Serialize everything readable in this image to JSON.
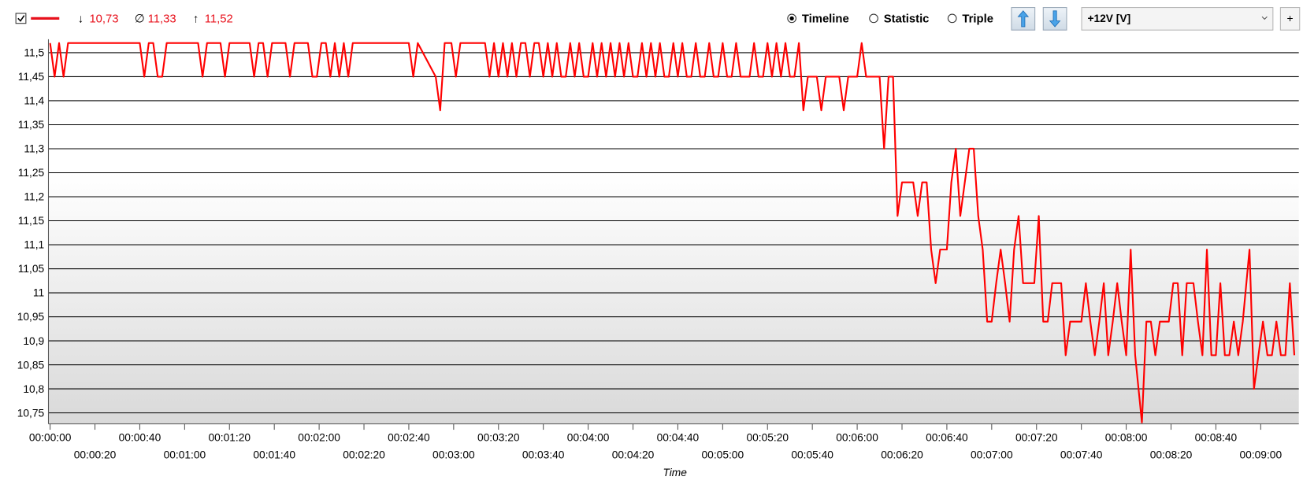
{
  "toolbar": {
    "stats": {
      "min": "10,73",
      "avg": "11,33",
      "max": "11,52"
    },
    "views": [
      "Timeline",
      "Statistic",
      "Triple"
    ],
    "sensor": "+12V [V]",
    "add_button": "+"
  },
  "chart_data": {
    "type": "line",
    "x_label": "Time",
    "x": [
      0,
      2,
      4,
      6,
      8,
      40,
      42,
      44,
      46,
      48,
      50,
      52,
      66,
      68,
      70,
      76,
      78,
      80,
      89,
      91,
      93,
      95,
      97,
      99,
      105,
      107,
      109,
      115,
      117,
      119,
      121,
      123,
      125,
      127,
      129,
      131,
      133,
      135,
      160,
      162,
      164,
      172,
      174,
      176,
      179,
      181,
      183,
      194,
      196,
      198,
      200,
      202,
      204,
      206,
      208,
      210,
      212,
      214,
      216,
      218,
      220,
      222,
      224,
      226,
      228,
      230,
      232,
      234,
      236,
      238,
      240,
      242,
      244,
      246,
      248,
      250,
      252,
      254,
      256,
      258,
      260,
      262,
      264,
      266,
      268,
      270,
      272,
      274,
      276,
      278,
      280,
      282,
      284,
      286,
      288,
      290,
      292,
      294,
      296,
      298,
      300,
      302,
      304,
      306,
      308,
      310,
      312,
      314,
      316,
      318,
      320,
      322,
      324,
      326,
      328,
      330,
      332,
      334,
      336,
      338,
      342,
      344,
      346,
      352,
      354,
      356,
      360,
      362,
      364,
      370,
      372,
      374,
      376,
      378,
      380,
      385,
      387,
      389,
      391,
      393,
      395,
      397,
      400,
      402,
      404,
      406,
      408,
      410,
      412,
      414,
      416,
      418,
      420,
      422,
      424,
      426,
      428,
      430,
      432,
      434,
      439,
      441,
      443,
      445,
      447,
      451,
      453,
      455,
      460,
      462,
      464,
      466,
      468,
      470,
      472,
      474,
      476,
      478,
      480,
      482,
      484,
      487,
      489,
      491,
      493,
      495,
      499,
      501,
      503,
      505,
      507,
      510,
      512,
      514,
      516,
      518,
      520,
      522,
      524,
      526,
      528,
      530,
      532,
      535,
      537,
      539,
      541,
      543,
      545,
      547,
      549,
      551,
      553,
      555
    ],
    "series": [
      {
        "color": "#ff0000",
        "values": [
          11.52,
          11.45,
          11.52,
          11.45,
          11.52,
          11.52,
          11.45,
          11.52,
          11.52,
          11.45,
          11.45,
          11.52,
          11.52,
          11.45,
          11.52,
          11.52,
          11.45,
          11.52,
          11.52,
          11.45,
          11.52,
          11.52,
          11.45,
          11.52,
          11.52,
          11.45,
          11.52,
          11.52,
          11.45,
          11.45,
          11.52,
          11.52,
          11.45,
          11.52,
          11.45,
          11.52,
          11.45,
          11.52,
          11.52,
          11.45,
          11.52,
          11.45,
          11.38,
          11.52,
          11.52,
          11.45,
          11.52,
          11.52,
          11.45,
          11.52,
          11.45,
          11.52,
          11.45,
          11.52,
          11.45,
          11.52,
          11.52,
          11.45,
          11.52,
          11.52,
          11.45,
          11.52,
          11.45,
          11.52,
          11.45,
          11.45,
          11.52,
          11.45,
          11.52,
          11.45,
          11.45,
          11.52,
          11.45,
          11.52,
          11.45,
          11.52,
          11.45,
          11.52,
          11.45,
          11.52,
          11.45,
          11.45,
          11.52,
          11.45,
          11.52,
          11.45,
          11.52,
          11.45,
          11.45,
          11.52,
          11.45,
          11.52,
          11.45,
          11.45,
          11.52,
          11.45,
          11.45,
          11.52,
          11.45,
          11.45,
          11.52,
          11.45,
          11.45,
          11.52,
          11.45,
          11.45,
          11.45,
          11.52,
          11.45,
          11.45,
          11.52,
          11.45,
          11.52,
          11.45,
          11.52,
          11.45,
          11.45,
          11.52,
          11.38,
          11.45,
          11.45,
          11.38,
          11.45,
          11.45,
          11.38,
          11.45,
          11.45,
          11.52,
          11.45,
          11.45,
          11.3,
          11.45,
          11.45,
          11.16,
          11.23,
          11.23,
          11.16,
          11.23,
          11.23,
          11.09,
          11.02,
          11.09,
          11.09,
          11.23,
          11.3,
          11.16,
          11.23,
          11.3,
          11.3,
          11.16,
          11.09,
          10.94,
          10.94,
          11.02,
          11.09,
          11.02,
          10.94,
          11.09,
          11.16,
          11.02,
          11.02,
          11.16,
          10.94,
          10.94,
          11.02,
          11.02,
          10.87,
          10.94,
          10.94,
          11.02,
          10.94,
          10.87,
          10.94,
          11.02,
          10.87,
          10.94,
          11.02,
          10.94,
          10.87,
          11.09,
          10.87,
          10.73,
          10.94,
          10.94,
          10.87,
          10.94,
          10.94,
          11.02,
          11.02,
          10.87,
          11.02,
          11.02,
          10.94,
          10.87,
          11.09,
          10.87,
          10.87,
          11.02,
          10.87,
          10.87,
          10.94,
          10.87,
          10.94,
          11.09,
          10.8,
          10.87,
          10.94,
          10.87,
          10.87,
          10.94,
          10.87,
          10.87,
          11.02,
          10.87
        ]
      }
    ],
    "xlim": [
      0,
      557
    ],
    "ylim": [
      10.727,
      11.528
    ],
    "xticks": [
      {
        "value": 0,
        "label": "00:00:00"
      },
      {
        "value": 20,
        "label": "00:00:20"
      },
      {
        "value": 40,
        "label": "00:00:40"
      },
      {
        "value": 60,
        "label": "00:01:00"
      },
      {
        "value": 80,
        "label": "00:01:20"
      },
      {
        "value": 100,
        "label": "00:01:40"
      },
      {
        "value": 120,
        "label": "00:02:00"
      },
      {
        "value": 140,
        "label": "00:02:20"
      },
      {
        "value": 160,
        "label": "00:02:40"
      },
      {
        "value": 180,
        "label": "00:03:00"
      },
      {
        "value": 200,
        "label": "00:03:20"
      },
      {
        "value": 220,
        "label": "00:03:40"
      },
      {
        "value": 240,
        "label": "00:04:00"
      },
      {
        "value": 260,
        "label": "00:04:20"
      },
      {
        "value": 280,
        "label": "00:04:40"
      },
      {
        "value": 300,
        "label": "00:05:00"
      },
      {
        "value": 320,
        "label": "00:05:20"
      },
      {
        "value": 340,
        "label": "00:05:40"
      },
      {
        "value": 360,
        "label": "00:06:00"
      },
      {
        "value": 380,
        "label": "00:06:20"
      },
      {
        "value": 400,
        "label": "00:06:40"
      },
      {
        "value": 420,
        "label": "00:07:00"
      },
      {
        "value": 440,
        "label": "00:07:20"
      },
      {
        "value": 460,
        "label": "00:07:40"
      },
      {
        "value": 480,
        "label": "00:08:00"
      },
      {
        "value": 500,
        "label": "00:08:20"
      },
      {
        "value": 520,
        "label": "00:08:40"
      },
      {
        "value": 540,
        "label": "00:09:00"
      }
    ],
    "yticks": [
      {
        "value": 10.75,
        "label": "10,75"
      },
      {
        "value": 10.8,
        "label": "10,8"
      },
      {
        "value": 10.85,
        "label": "10,85"
      },
      {
        "value": 10.9,
        "label": "10,9"
      },
      {
        "value": 10.95,
        "label": "10,95"
      },
      11,
      {
        "value": 11.05,
        "label": "11,05"
      },
      {
        "value": 11.1,
        "label": "11,1"
      },
      {
        "value": 11.15,
        "label": "11,15"
      },
      {
        "value": 11.2,
        "label": "11,2"
      },
      {
        "value": 11.25,
        "label": "11,25"
      },
      {
        "value": 11.3,
        "label": "11,3"
      },
      {
        "value": 11.35,
        "label": "11,35"
      },
      {
        "value": 11.4,
        "label": "11,4"
      },
      {
        "value": 11.45,
        "label": "11,45"
      },
      {
        "value": 11.5,
        "label": "11,5"
      }
    ],
    "grid": true
  }
}
